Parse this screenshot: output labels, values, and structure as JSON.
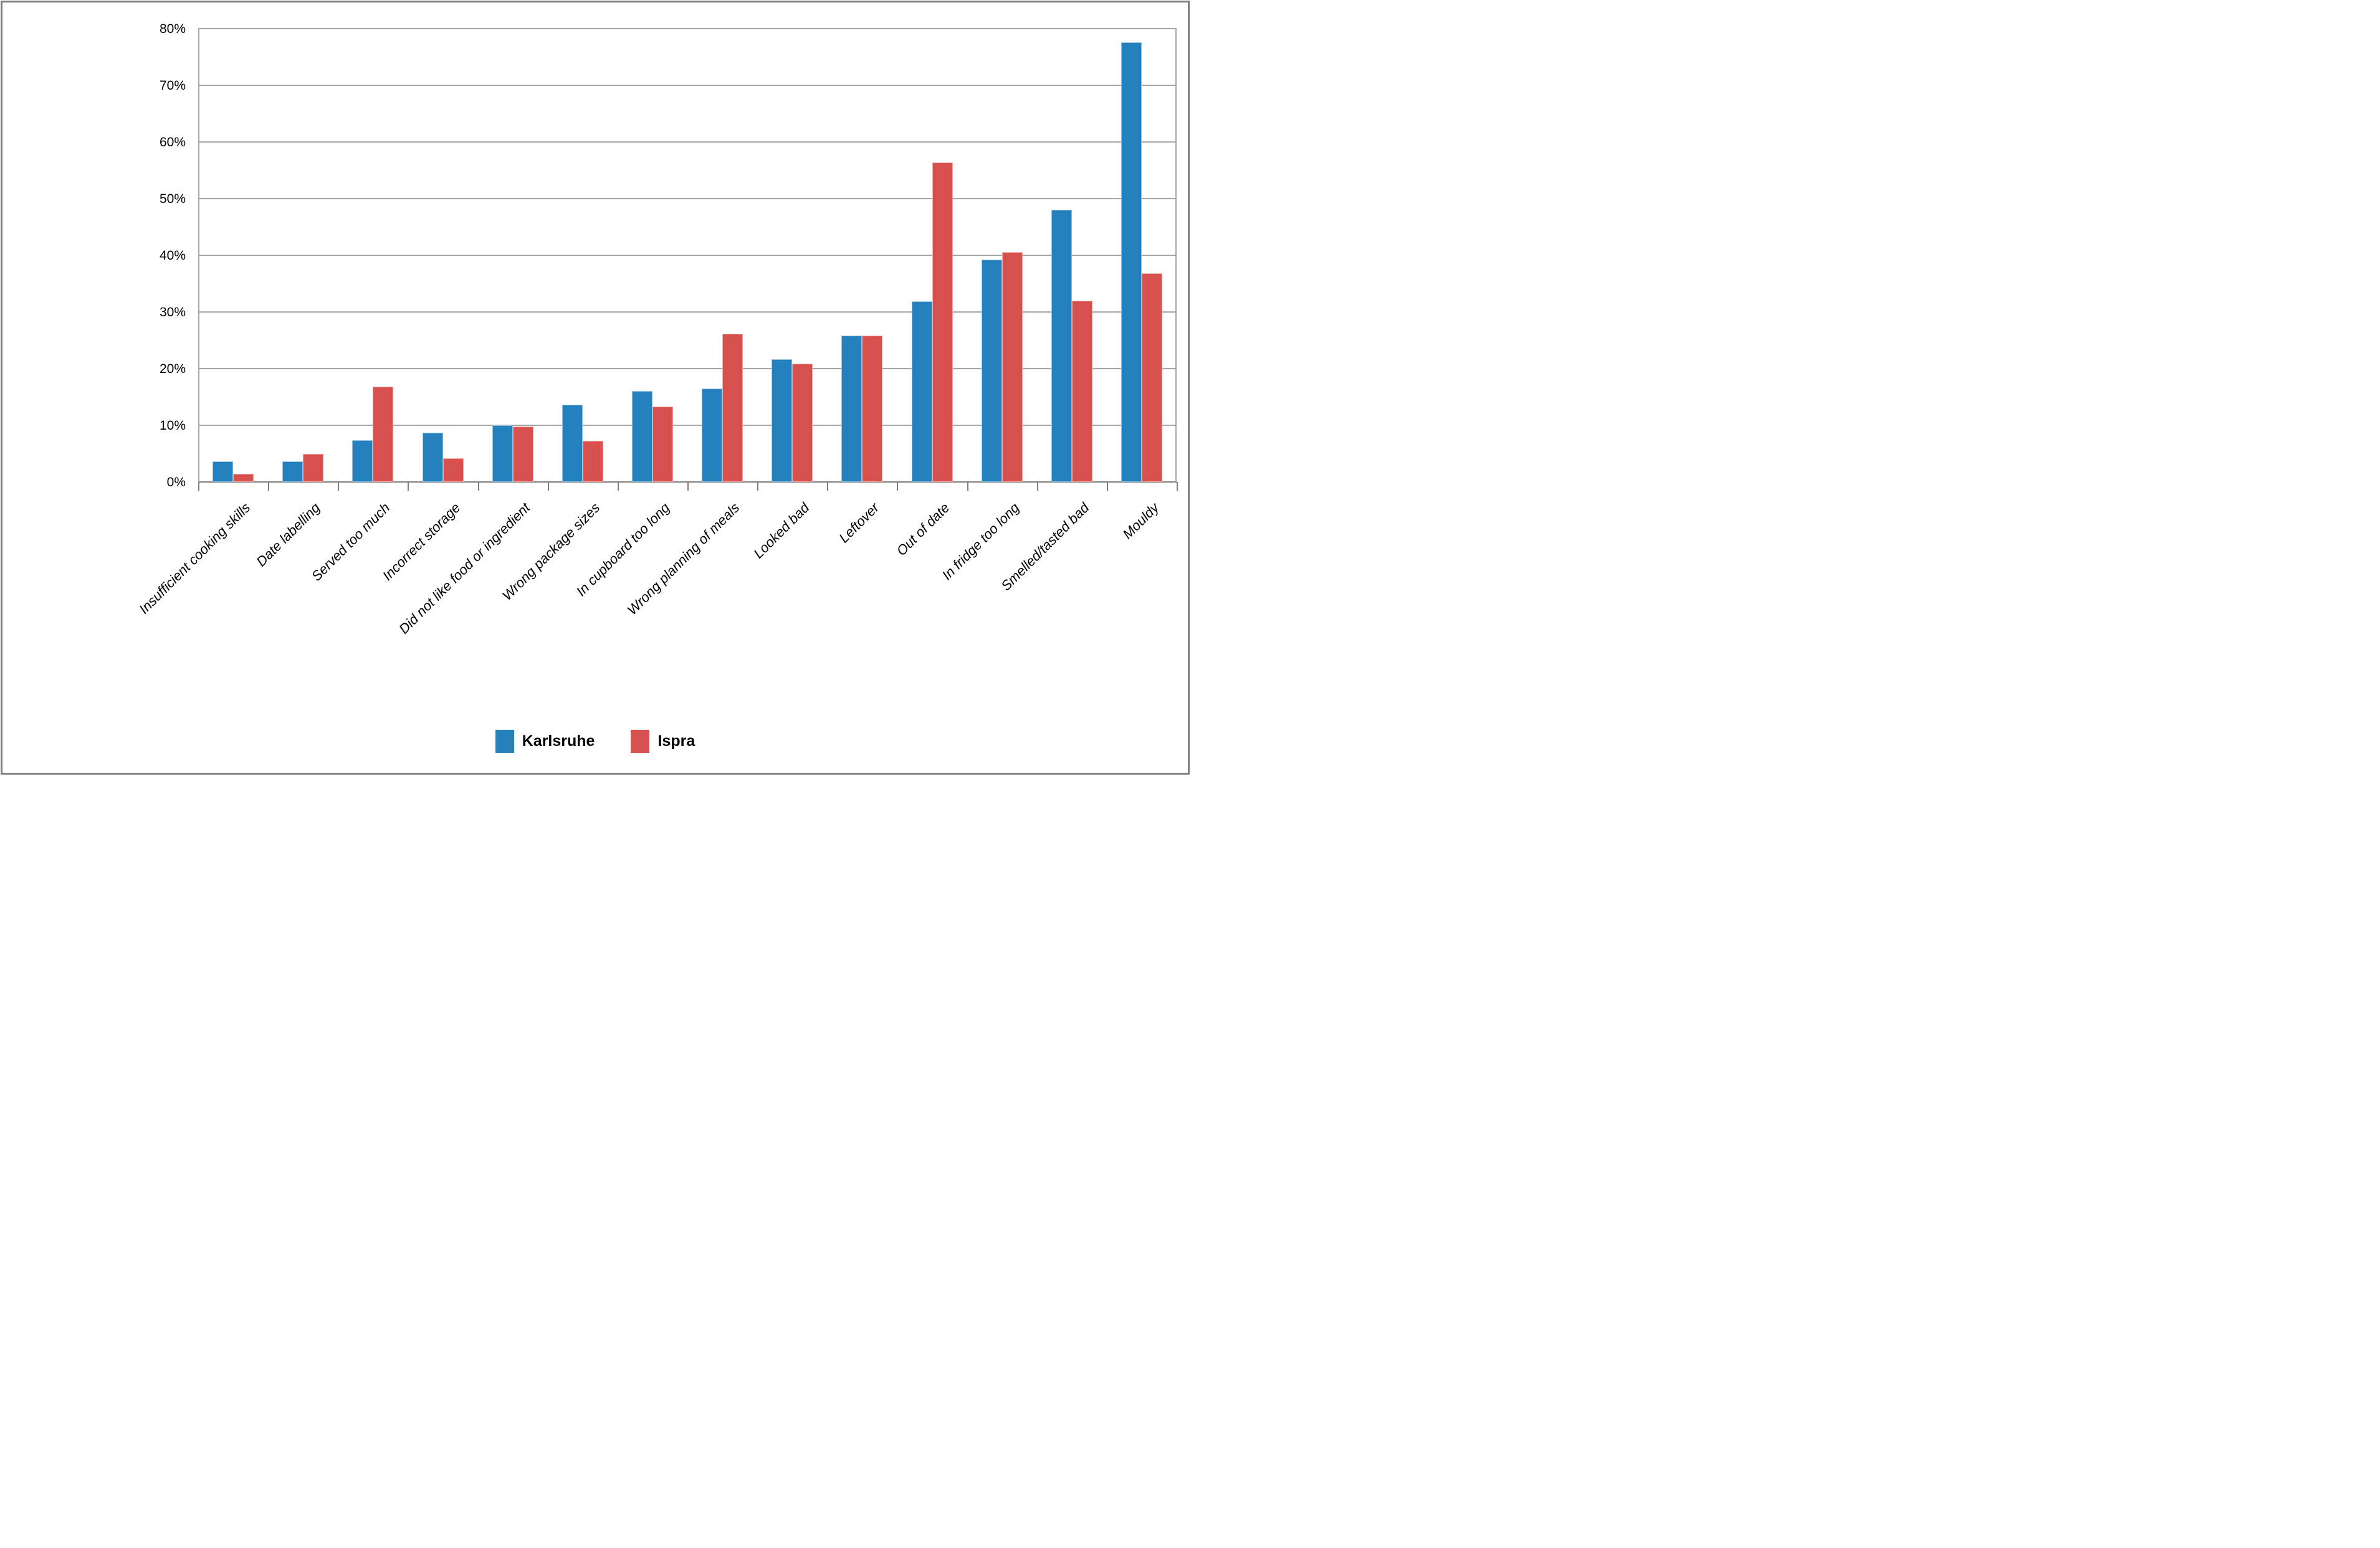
{
  "chart_data": {
    "type": "bar",
    "title": "",
    "xlabel": "",
    "ylabel": "",
    "categories": [
      "Insufficient cooking skills",
      "Date labelling",
      "Served too much",
      "Incorrect storage",
      "Did not like food or ingredient",
      "Wrong package sizes",
      "In cupboard too long",
      "Wrong planning of meals",
      "Looked bad",
      "Leftover",
      "Out of date",
      "In fridge too long",
      "Smelled/tasted bad",
      "Mouldy"
    ],
    "series": [
      {
        "name": "Karlsruhe",
        "color": "#2481be",
        "edge_color": "#8fc0e0",
        "values": [
          3.6,
          3.6,
          7.4,
          8.7,
          10.0,
          13.6,
          16.0,
          16.5,
          21.7,
          25.8,
          31.9,
          39.2,
          48.0,
          77.6
        ]
      },
      {
        "name": "Ispra",
        "color": "#d8504d",
        "edge_color": "#eea9a5",
        "values": [
          1.4,
          4.9,
          16.8,
          4.2,
          9.8,
          7.3,
          13.3,
          26.1,
          20.9,
          25.8,
          56.4,
          40.5,
          32.0,
          36.8
        ]
      }
    ],
    "ylim": [
      0,
      80
    ],
    "ytick_step": 10,
    "ytick_labels": [
      "0%",
      "10%",
      "20%",
      "30%",
      "40%",
      "50%",
      "60%",
      "70%",
      "80%"
    ],
    "grid": true,
    "legend_position": "bottom",
    "colors": {
      "gridline": "#a6a6a6",
      "axis_line": "#7f7f7f",
      "outer_border": "#7f7f7f",
      "text": "#000000",
      "background": "#ffffff"
    }
  }
}
